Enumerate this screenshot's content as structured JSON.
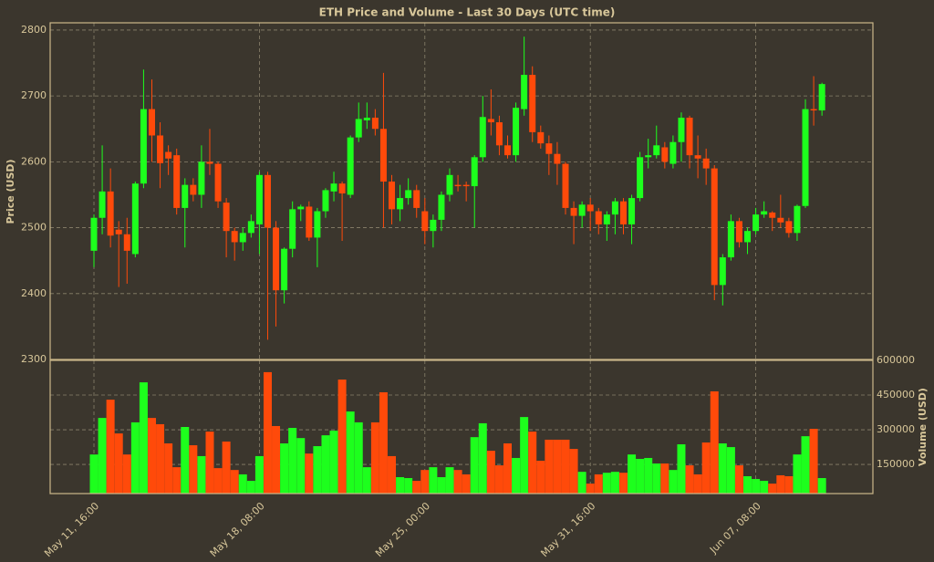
{
  "chart_data": {
    "type": "candlestick",
    "title": "ETH Price and Volume - Last 30 Days (UTC time)",
    "y_label": "Price (USD)",
    "up_color": "#1dff1d",
    "down_color": "#ff4a0a",
    "grid": true,
    "categories": [
      "May 11, 16:00",
      null,
      null,
      null,
      null,
      null,
      null,
      null,
      null,
      null,
      null,
      null,
      null,
      null,
      null,
      null,
      null,
      null,
      null,
      null,
      "May 18, 08:00",
      null,
      null,
      null,
      null,
      null,
      null,
      null,
      null,
      null,
      null,
      null,
      null,
      null,
      null,
      null,
      null,
      null,
      null,
      null,
      "May 25, 00:00",
      null,
      null,
      null,
      null,
      null,
      null,
      null,
      null,
      null,
      null,
      null,
      null,
      null,
      null,
      null,
      null,
      null,
      null,
      null,
      "May 31, 16:00",
      null,
      null,
      null,
      null,
      null,
      null,
      null,
      null,
      null,
      null,
      null,
      null,
      null,
      null,
      null,
      null,
      null,
      null,
      null,
      "Jun 07, 08:00",
      null,
      null,
      null,
      null,
      null,
      null,
      null,
      null
    ],
    "open": [
      2465,
      2515,
      2555,
      2497,
      2490,
      2460,
      2567,
      2680,
      2640,
      2615,
      2610,
      2530,
      2565,
      2550,
      2600,
      2597,
      2538,
      2495,
      2478,
      2492,
      2505,
      2580,
      2500,
      2405,
      2468,
      2528,
      2532,
      2485,
      2525,
      2555,
      2567,
      2550,
      2637,
      2663,
      2667,
      2650,
      2570,
      2528,
      2545,
      2557,
      2525,
      2495,
      2512,
      2550,
      2565,
      2565,
      2563,
      2607,
      2665,
      2660,
      2625,
      2610,
      2680,
      2732,
      2645,
      2628,
      2612,
      2597,
      2530,
      2518,
      2535,
      2525,
      2505,
      2520,
      2540,
      2505,
      2545,
      2607,
      2610,
      2622,
      2597,
      2630,
      2667,
      2610,
      2605,
      2590,
      2413,
      2455,
      2510,
      2478,
      2495,
      2520,
      2523,
      2515,
      2510,
      2492,
      2533,
      2680,
      2678
    ],
    "high": [
      2520,
      2625,
      2590,
      2510,
      2515,
      2570,
      2740,
      2725,
      2660,
      2625,
      2620,
      2575,
      2575,
      2625,
      2650,
      2600,
      2545,
      2500,
      2500,
      2520,
      2585,
      2585,
      2510,
      2470,
      2540,
      2535,
      2540,
      2530,
      2560,
      2585,
      2570,
      2640,
      2690,
      2690,
      2680,
      2735,
      2580,
      2565,
      2575,
      2565,
      2545,
      2520,
      2555,
      2590,
      2580,
      2570,
      2610,
      2700,
      2710,
      2670,
      2640,
      2690,
      2790,
      2745,
      2655,
      2640,
      2630,
      2600,
      2540,
      2540,
      2545,
      2530,
      2525,
      2545,
      2545,
      2550,
      2615,
      2635,
      2655,
      2630,
      2640,
      2675,
      2670,
      2640,
      2620,
      2595,
      2460,
      2520,
      2515,
      2500,
      2530,
      2540,
      2525,
      2550,
      2515,
      2535,
      2695,
      2730,
      2720
    ],
    "low": [
      2440,
      2490,
      2470,
      2410,
      2415,
      2455,
      2560,
      2600,
      2560,
      2580,
      2520,
      2470,
      2540,
      2530,
      2580,
      2530,
      2455,
      2450,
      2465,
      2485,
      2460,
      2330,
      2350,
      2385,
      2455,
      2510,
      2480,
      2440,
      2515,
      2540,
      2480,
      2545,
      2630,
      2650,
      2640,
      2500,
      2505,
      2510,
      2535,
      2515,
      2475,
      2470,
      2495,
      2540,
      2555,
      2540,
      2500,
      2600,
      2640,
      2610,
      2605,
      2600,
      2670,
      2630,
      2620,
      2580,
      2565,
      2520,
      2475,
      2500,
      2495,
      2490,
      2480,
      2490,
      2490,
      2475,
      2540,
      2590,
      2605,
      2590,
      2590,
      2600,
      2590,
      2575,
      2565,
      2390,
      2382,
      2450,
      2470,
      2460,
      2490,
      2515,
      2495,
      2500,
      2485,
      2480,
      2530,
      2655,
      2670
    ],
    "close": [
      2515,
      2555,
      2488,
      2490,
      2465,
      2567,
      2680,
      2640,
      2598,
      2605,
      2530,
      2565,
      2550,
      2600,
      2597,
      2540,
      2495,
      2478,
      2492,
      2510,
      2580,
      2500,
      2405,
      2468,
      2528,
      2532,
      2485,
      2525,
      2557,
      2567,
      2552,
      2637,
      2665,
      2667,
      2650,
      2570,
      2528,
      2545,
      2557,
      2530,
      2495,
      2512,
      2550,
      2580,
      2563,
      2563,
      2607,
      2668,
      2660,
      2625,
      2610,
      2682,
      2732,
      2645,
      2628,
      2612,
      2597,
      2530,
      2518,
      2535,
      2525,
      2505,
      2520,
      2540,
      2505,
      2545,
      2607,
      2610,
      2625,
      2600,
      2630,
      2667,
      2610,
      2605,
      2590,
      2413,
      2455,
      2510,
      2478,
      2495,
      2520,
      2525,
      2515,
      2508,
      2492,
      2533,
      2680,
      2678,
      2718
    ],
    "ylim": [
      2300,
      2811
    ],
    "yticks": [
      2300,
      2400,
      2500,
      2600,
      2700,
      2800
    ],
    "volume": {
      "y_label": "Volume (USD)",
      "values": [
        193000,
        351000,
        430000,
        284000,
        193000,
        332000,
        505000,
        351000,
        324000,
        241000,
        138000,
        312000,
        233000,
        186000,
        292000,
        134000,
        249000,
        126000,
        107000,
        79000,
        186000,
        549000,
        316000,
        241000,
        308000,
        264000,
        197000,
        229000,
        276000,
        296000,
        517000,
        379000,
        332000,
        138000,
        332000,
        462000,
        186000,
        95000,
        91000,
        79000,
        126000,
        138000,
        95000,
        138000,
        126000,
        107000,
        268000,
        328000,
        209000,
        146000,
        241000,
        178000,
        355000,
        292000,
        166000,
        257000,
        257000,
        257000,
        217000,
        118000,
        67000,
        107000,
        114000,
        118000,
        114000,
        193000,
        174000,
        178000,
        154000,
        154000,
        126000,
        237000,
        146000,
        107000,
        245000,
        466000,
        241000,
        225000,
        146000,
        99000,
        87000,
        79000,
        67000,
        103000,
        99000,
        193000,
        272000,
        304000,
        91000
      ],
      "ylim": [
        24000,
        600000
      ],
      "yticks": [
        150000,
        300000,
        450000,
        600000
      ]
    }
  }
}
